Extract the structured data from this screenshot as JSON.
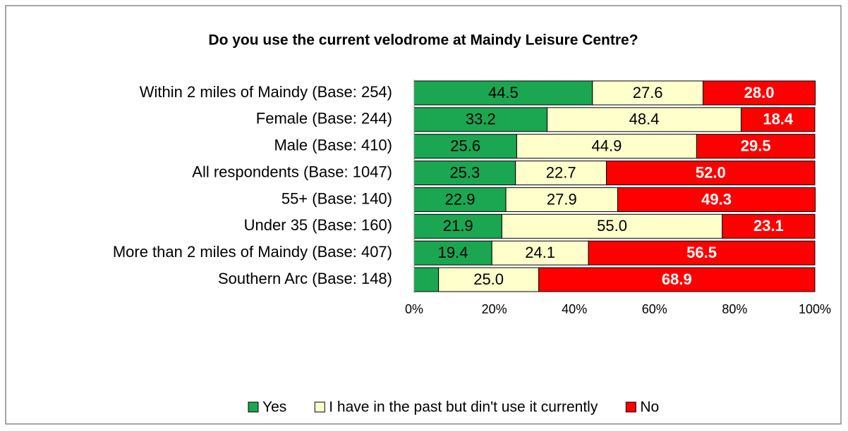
{
  "chart_data": {
    "type": "stacked-bar-horizontal",
    "title": "Do you use the current velodrome at Maindy Leisure Centre?",
    "categories": [
      "Within 2 miles of Maindy (Base: 254)",
      "Female (Base: 244)",
      "Male (Base: 410)",
      "All respondents (Base: 1047)",
      "55+ (Base: 140)",
      "Under 35 (Base: 160)",
      "More than 2 miles of Maindy (Base: 407)",
      "Southern Arc (Base: 148)"
    ],
    "series": [
      {
        "name": "Yes",
        "color": "#1ba652",
        "label_color": "#000000",
        "values": [
          44.5,
          33.2,
          25.6,
          25.3,
          22.9,
          21.9,
          19.4,
          6.1
        ],
        "value_labels": [
          "44.5",
          "33.2",
          "25.6",
          "25.3",
          "22.9",
          "21.9",
          "19.4",
          null
        ]
      },
      {
        "name": "I have in the past but din't use it currently",
        "color": "#ffffcc",
        "label_color": "#000000",
        "values": [
          27.6,
          48.4,
          44.9,
          22.7,
          27.9,
          55,
          24.1,
          25
        ],
        "value_labels": [
          "27.6",
          "48.4",
          "44.9",
          "22.7",
          "27.9",
          "55.0",
          "24.1",
          "25.0"
        ]
      },
      {
        "name": "No",
        "color": "#ff0000",
        "label_color": "#ffffff",
        "values": [
          28,
          18.4,
          29.5,
          52,
          49.3,
          23.1,
          56.5,
          68.9
        ],
        "value_labels": [
          "28.0",
          "18.4",
          "29.5",
          "52.0",
          "49.3",
          "23.1",
          "56.5",
          "68.9"
        ]
      }
    ],
    "xlim": [
      0,
      100
    ],
    "xticks": [
      {
        "value": 0,
        "label": "0%"
      },
      {
        "value": 20,
        "label": "20%"
      },
      {
        "value": 40,
        "label": "40%"
      },
      {
        "value": 60,
        "label": "60%"
      },
      {
        "value": 80,
        "label": "80%"
      },
      {
        "value": 100,
        "label": "100%"
      }
    ],
    "legend": "bottom"
  }
}
